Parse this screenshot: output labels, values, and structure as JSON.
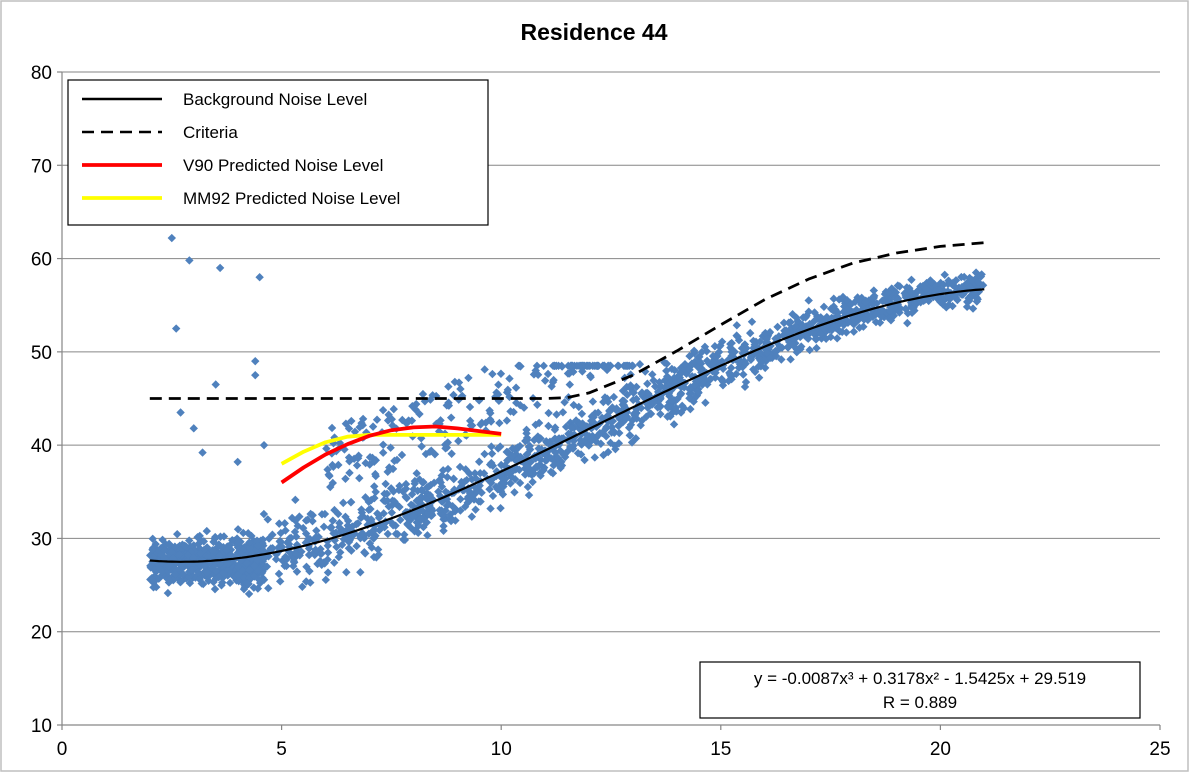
{
  "chart_data": {
    "type": "scatter",
    "title": "Residence 44",
    "xlabel": "",
    "ylabel": "",
    "xlim": [
      0,
      25
    ],
    "ylim": [
      10,
      80
    ],
    "x_ticks": [
      0,
      5,
      10,
      15,
      20,
      25
    ],
    "y_ticks": [
      10,
      20,
      30,
      40,
      50,
      60,
      70,
      80
    ],
    "grid": "horizontal",
    "legend_position": "top-left",
    "colors": {
      "scatter": "#4f81bd",
      "background": "#000000",
      "criteria": "#000000",
      "v90": "#ff0000",
      "mm92": "#ffff00"
    },
    "legend": [
      {
        "key": "background",
        "label": "Background Noise Level",
        "style": "solid"
      },
      {
        "key": "criteria",
        "label": "Criteria",
        "style": "dashed"
      },
      {
        "key": "v90",
        "label": "V90 Predicted Noise Level",
        "style": "solid"
      },
      {
        "key": "mm92",
        "label": "MM92 Predicted Noise Level",
        "style": "solid"
      }
    ],
    "series": [
      {
        "name": "Background Noise Level",
        "key": "background",
        "kind": "fit",
        "x_range": [
          2,
          21
        ],
        "coefficients": {
          "a3": -0.0087,
          "a2": 0.3178,
          "a1": -1.5425,
          "a0": 29.519
        }
      },
      {
        "name": "Criteria",
        "key": "criteria",
        "kind": "line",
        "x": [
          2,
          3,
          4,
          5,
          6,
          7,
          8,
          9,
          10,
          11,
          11.5,
          12,
          13,
          14,
          15,
          16,
          17,
          18,
          19,
          20,
          21
        ],
        "y": [
          45,
          45,
          45,
          45,
          45,
          45,
          45,
          45,
          45,
          45,
          45.1,
          45.6,
          47.5,
          50.1,
          52.9,
          55.6,
          57.8,
          59.5,
          60.6,
          61.3,
          61.7
        ]
      },
      {
        "name": "V90 Predicted Noise Level",
        "key": "v90",
        "kind": "line",
        "x": [
          5,
          5.5,
          6,
          6.5,
          7,
          7.5,
          8,
          8.5,
          9,
          9.5,
          10
        ],
        "y": [
          36,
          37.6,
          39,
          40.1,
          41,
          41.6,
          41.9,
          42,
          41.8,
          41.5,
          41.2
        ]
      },
      {
        "name": "MM92 Predicted Noise Level",
        "key": "mm92",
        "kind": "line",
        "x": [
          5,
          5.5,
          6,
          6.5,
          7,
          8,
          9,
          10
        ],
        "y": [
          38,
          39.3,
          40.3,
          40.9,
          41.1,
          41.1,
          41.1,
          41.1
        ]
      }
    ],
    "scatter_outliers": {
      "x": [
        2.5,
        2.6,
        2.9,
        3.6,
        4.5,
        3.5,
        4.4,
        4.4,
        3.0,
        4.0,
        3.2,
        2.7,
        4.6
      ],
      "y": [
        62.2,
        52.5,
        59.8,
        59.0,
        58.0,
        46.5,
        49.0,
        47.5,
        41.8,
        38.2,
        39.2,
        43.5,
        40.0
      ]
    },
    "scatter_cloud": {
      "note_bands": [
        {
          "x": [
            2,
            5
          ],
          "y_center": 27.5,
          "y_spread": 5
        },
        {
          "x": [
            5,
            10
          ],
          "y_center_start": 28,
          "y_center_end": 37,
          "y_spread": 7
        },
        {
          "x": [
            10,
            15
          ],
          "y_center_start": 37,
          "y_center_end": 48,
          "y_spread": 6
        },
        {
          "x": [
            15,
            21
          ],
          "y_center_start": 48,
          "y_center_end": 56,
          "y_spread": 4
        }
      ]
    },
    "annotation": {
      "equation": "y = -0.0087x³ + 0.3178x² - 1.5425x + 29.519",
      "r_value": "R = 0.889"
    }
  }
}
